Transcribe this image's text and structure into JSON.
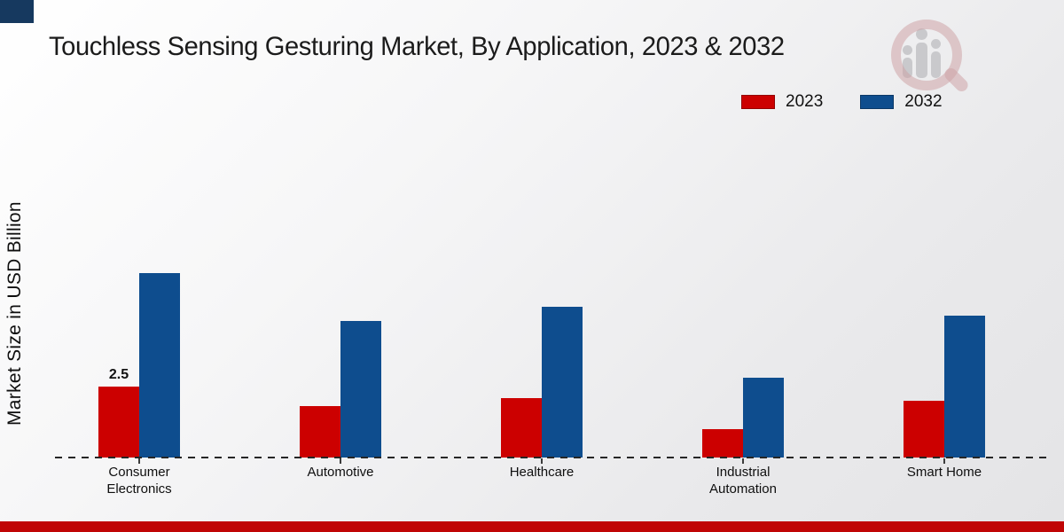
{
  "title": "Touchless Sensing Gesturing Market, By Application, 2023 & 2032",
  "branding": {
    "corner_accent_color": "#16395f",
    "footer_bar_color": "#c00505",
    "watermark_icon": "magnifier-bar-chart-logo"
  },
  "legend": {
    "items": [
      {
        "label": "2023",
        "color": "#cc0000"
      },
      {
        "label": "2032",
        "color": "#0e4d8e"
      }
    ]
  },
  "chart_data": {
    "type": "bar",
    "title": "Touchless Sensing Gesturing Market, By Application, 2023 & 2032",
    "xlabel": "",
    "ylabel": "Market Size in USD Billion",
    "categories": [
      "Consumer Electronics",
      "Automotive",
      "Healthcare",
      "Industrial Automation",
      "Smart Home"
    ],
    "series": [
      {
        "name": "2023",
        "color": "#cc0000",
        "values": [
          2.5,
          1.8,
          2.1,
          1.0,
          2.0
        ]
      },
      {
        "name": "2032",
        "color": "#0e4d8e",
        "values": [
          6.5,
          4.8,
          5.3,
          2.8,
          5.0
        ]
      }
    ],
    "data_labels": [
      {
        "series": "2023",
        "category_index": 0,
        "text": "2.5"
      }
    ],
    "ylim": [
      0,
      8
    ],
    "grid": false,
    "legend_position": "top-right",
    "baseline_style": "dashed",
    "units": "USD Billion"
  }
}
